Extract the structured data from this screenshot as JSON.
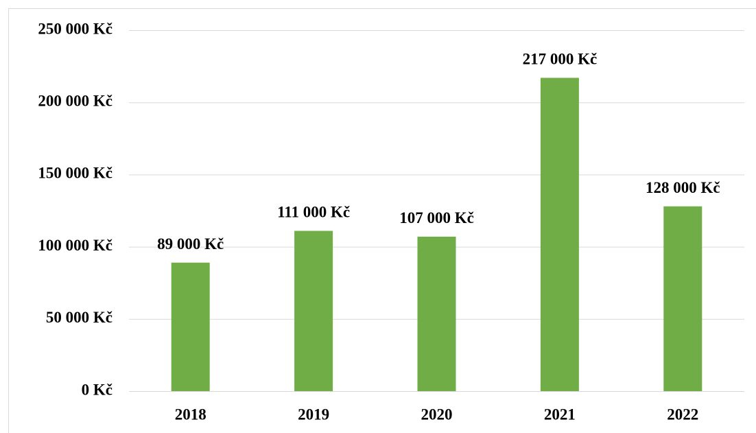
{
  "chart_data": {
    "type": "bar",
    "categories": [
      "2018",
      "2019",
      "2020",
      "2021",
      "2022"
    ],
    "values": [
      89000,
      111000,
      107000,
      217000,
      128000
    ],
    "value_labels": [
      "89 000 Kč",
      "111 000 Kč",
      "107 000 Kč",
      "217 000 Kč",
      "128 000 Kč"
    ],
    "color": "#70ad47",
    "ylim": [
      0,
      250000
    ],
    "yticks": [
      {
        "value": 0,
        "label": "0 Kč"
      },
      {
        "value": 50000,
        "label": "50 000 Kč"
      },
      {
        "value": 100000,
        "label": "100 000 Kč"
      },
      {
        "value": 150000,
        "label": "150 000 Kč"
      },
      {
        "value": 200000,
        "label": "200 000 Kč"
      },
      {
        "value": 250000,
        "label": "250 000 Kč"
      }
    ],
    "grid": true
  }
}
